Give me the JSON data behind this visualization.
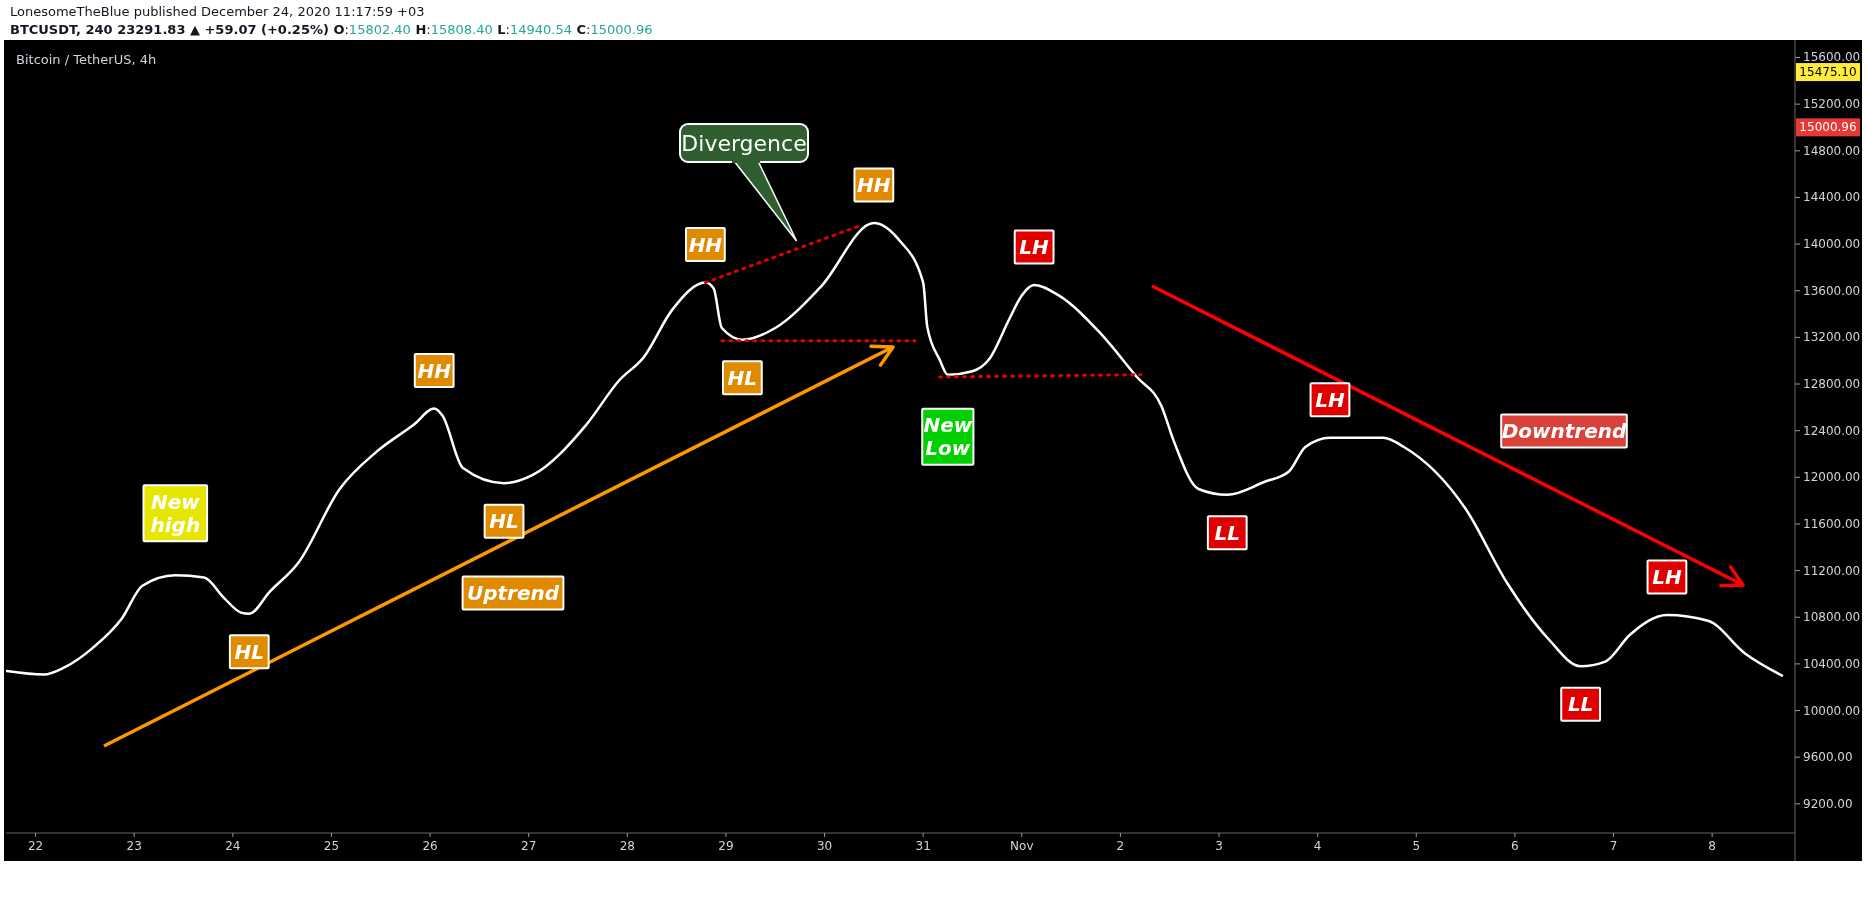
{
  "chart_data": {
    "type": "line",
    "title": "Bitcoin / TetherUS, 4h",
    "subtitle": "LonesomeTheBlue published December 24, 2020 11:17:59 +03",
    "annotations": [
      "BTCUSDT, 240  23291.83 ▲ +59.07 (+0.25%) O:15802.40 H:15808.40 L:14940.54 C:15000.96",
      "15475.10",
      "15000.96",
      "Uptrend",
      "Downtrend",
      "Divergence",
      {
        "text": "New high",
        "x": "2020-10-23T10:00",
        "y": 11160
      },
      {
        "text": "HL",
        "x": "2020-10-24T04:00",
        "y": 10830
      },
      {
        "text": "HH",
        "x": "2020-10-26T01:00",
        "y": 12590
      },
      {
        "text": "HL",
        "x": "2020-10-26T18:00",
        "y": 11950
      },
      {
        "text": "HH",
        "x": "2020-10-28T19:00",
        "y": 13670
      },
      {
        "text": "HL",
        "x": "2020-10-29T04:00",
        "y": 13180
      },
      {
        "text": "HH",
        "x": "2020-10-30T12:00",
        "y": 14180
      },
      {
        "text": "New Low",
        "x": "2020-10-31T06:00",
        "y": 12880
      },
      {
        "text": "LH",
        "x": "2020-11-01T03:00",
        "y": 13650
      },
      {
        "text": "LH",
        "x": "2020-11-04T03:00",
        "y": 12340
      },
      {
        "text": "LL",
        "x": "2020-11-03T02:00",
        "y": 11850
      },
      {
        "text": "LL",
        "x": "2020-11-06T16:00",
        "y": 10380
      },
      {
        "text": "LH",
        "x": "2020-11-07T13:00",
        "y": 10820
      }
    ],
    "xlim": [
      "2020-10-21T16:48",
      "2020-11-08T20:10"
    ],
    "xticks": [
      {
        "value": "2020-10-22",
        "label": "22"
      },
      {
        "value": "2020-10-23",
        "label": "23"
      },
      {
        "value": "2020-10-24",
        "label": "24"
      },
      {
        "value": "2020-10-25",
        "label": "25"
      },
      {
        "value": "2020-10-26",
        "label": "26"
      },
      {
        "value": "2020-10-27",
        "label": "27"
      },
      {
        "value": "2020-10-28",
        "label": "28"
      },
      {
        "value": "2020-10-29",
        "label": "29"
      },
      {
        "value": "2020-10-30",
        "label": "30"
      },
      {
        "value": "2020-10-31",
        "label": "31"
      },
      {
        "value": "2020-11-01",
        "label": "Nov"
      },
      {
        "value": "2020-11-02",
        "label": "2"
      },
      {
        "value": "2020-11-03",
        "label": "3"
      },
      {
        "value": "2020-11-04",
        "label": "4"
      },
      {
        "value": "2020-11-05",
        "label": "5"
      },
      {
        "value": "2020-11-06",
        "label": "6"
      },
      {
        "value": "2020-11-07",
        "label": "7"
      },
      {
        "value": "2020-11-08",
        "label": "8"
      }
    ],
    "ylim": [
      8950,
      15750
    ],
    "yticks": [
      {
        "value": 9200,
        "label": "9200.00"
      },
      {
        "value": 9600,
        "label": "9600.00"
      },
      {
        "value": 10000,
        "label": "10000.00"
      },
      {
        "value": 10400,
        "label": "10400.00"
      },
      {
        "value": 10800,
        "label": "10800.00"
      },
      {
        "value": 11200,
        "label": "11200.00"
      },
      {
        "value": 11600,
        "label": "11600.00"
      },
      {
        "value": 12000,
        "label": "12000.00"
      },
      {
        "value": 12400,
        "label": "12400.00"
      },
      {
        "value": 12800,
        "label": "12800.00"
      },
      {
        "value": 13200,
        "label": "13200.00"
      },
      {
        "value": 13600,
        "label": "13600.00"
      },
      {
        "value": 14000,
        "label": "14000.00"
      },
      {
        "value": 14400,
        "label": "14400.00"
      },
      {
        "value": 14800,
        "label": "14800.00"
      },
      {
        "value": 15200,
        "label": "15200.00"
      },
      {
        "value": 15600,
        "label": "15600.00"
      }
    ],
    "grid": false,
    "marker": "none",
    "line_style": "solid",
    "series": [
      {
        "color": "#ffffff",
        "x": [
          "2020-10-21T17:00",
          "2020-10-22T02:00",
          "2020-10-22T07:00",
          "2020-10-22T14:00",
          "2020-10-22T21:00",
          "2020-10-23T02:00",
          "2020-10-23T10:00",
          "2020-10-23T17:00",
          "2020-10-23T22:00",
          "2020-10-24T02:00",
          "2020-10-24T04:00",
          "2020-10-24T09:00",
          "2020-10-24T16:00",
          "2020-10-25T02:00",
          "2020-10-25T11:00",
          "2020-10-25T20:00",
          "2020-10-26T01:00",
          "2020-10-26T03:00",
          "2020-10-26T08:00",
          "2020-10-26T18:00",
          "2020-10-27T01:00",
          "2020-10-27T14:00",
          "2020-10-27T22:00",
          "2020-10-28T04:00",
          "2020-10-28T11:00",
          "2020-10-28T19:00",
          "2020-10-28T21:00",
          "2020-10-28T23:00",
          "2020-10-29T04:00",
          "2020-10-29T12:00",
          "2020-10-29T23:00",
          "2020-10-30T12:00",
          "2020-10-30T18:00",
          "2020-10-31T00:00",
          "2020-10-31T01:00",
          "2020-10-31T04:00",
          "2020-10-31T06:00",
          "2020-10-31T12:00",
          "2020-10-31T16:00",
          "2020-10-31T21:00",
          "2020-11-01T00:00",
          "2020-11-01T03:00",
          "2020-11-01T09:00",
          "2020-11-01T19:00",
          "2020-11-02T04:00",
          "2020-11-02T10:00",
          "2020-11-02T13:00",
          "2020-11-02T19:00",
          "2020-11-03T02:00",
          "2020-11-03T11:00",
          "2020-11-03T17:00",
          "2020-11-03T21:00",
          "2020-11-04T03:00",
          "2020-11-04T16:00",
          "2020-11-04T21:00",
          "2020-11-05T12:00",
          "2020-11-05T22:00",
          "2020-11-06T08:00",
          "2020-11-06T16:00",
          "2020-11-06T22:00",
          "2020-11-07T04:00",
          "2020-11-07T13:00",
          "2020-11-07T23:00",
          "2020-11-08T08:00",
          "2020-11-08T17:00"
        ],
        "values": [
          10340,
          10310,
          10370,
          10540,
          10790,
          11070,
          11160,
          11140,
          10960,
          10840,
          10830,
          11020,
          11270,
          11900,
          12220,
          12450,
          12590,
          12530,
          12080,
          11950,
          12020,
          12450,
          12830,
          13030,
          13440,
          13670,
          13620,
          13280,
          13180,
          13280,
          13630,
          14180,
          14040,
          13670,
          13290,
          13010,
          12880,
          12910,
          13010,
          13360,
          13560,
          13650,
          13560,
          13240,
          12860,
          12610,
          12310,
          11900,
          11850,
          11960,
          12050,
          12260,
          12340,
          12340,
          12260,
          11730,
          11100,
          10620,
          10380,
          10420,
          10650,
          10820,
          10770,
          10490,
          10300
        ]
      },
      {
        "type": "line",
        "color": "#e00000",
        "line_style": "dotted",
        "x": [
          "2020-10-28T19:00",
          "2020-10-30T08:00"
        ],
        "values": [
          13670,
          14150
        ]
      },
      {
        "type": "line",
        "color": "#e00000",
        "line_style": "dotted",
        "x": [
          "2020-10-28T23:00",
          "2020-10-30T22:00"
        ],
        "values": [
          13170,
          13170
        ]
      },
      {
        "type": "line",
        "color": "#e00000",
        "line_style": "dotted",
        "x": [
          "2020-10-31T04:00",
          "2020-11-02T05:00"
        ],
        "values": [
          12860,
          12880
        ]
      }
    ]
  }
}
